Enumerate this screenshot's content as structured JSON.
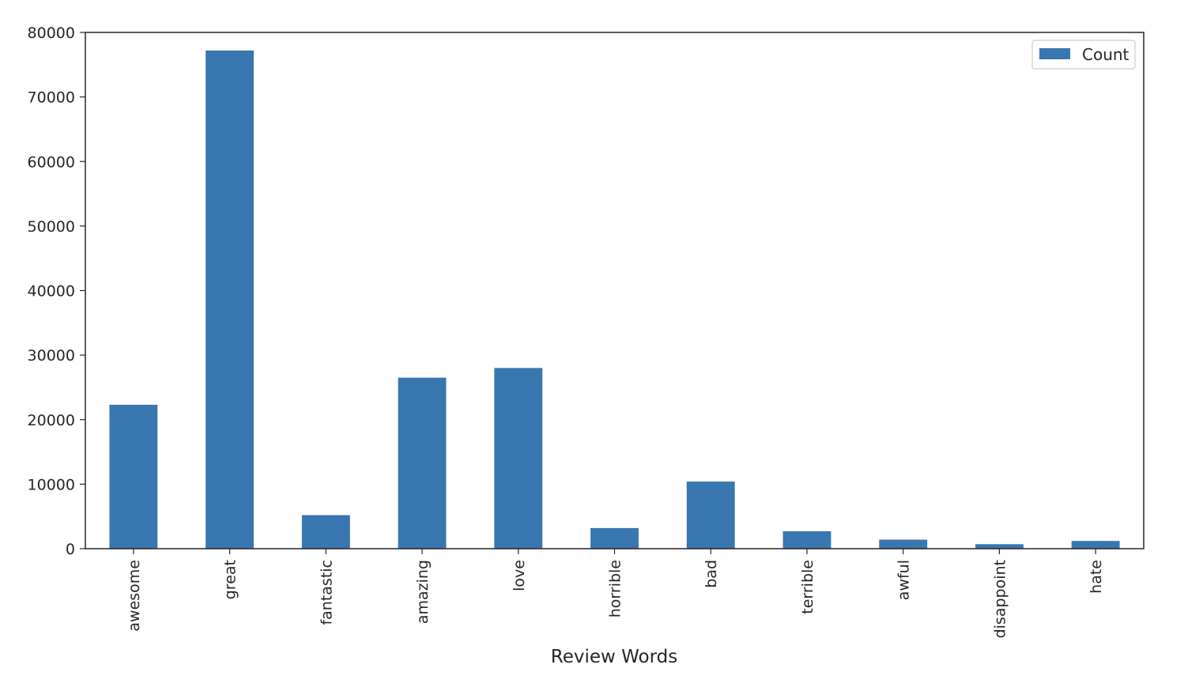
{
  "chart_data": {
    "type": "bar",
    "categories": [
      "awesome",
      "great",
      "fantastic",
      "amazing",
      "love",
      "horrible",
      "bad",
      "terrible",
      "awful",
      "disappoint",
      "hate"
    ],
    "series": [
      {
        "name": "Count",
        "values": [
          22300,
          77200,
          5200,
          26500,
          28000,
          3200,
          10400,
          2700,
          1400,
          700,
          1200
        ]
      }
    ],
    "title": "",
    "xlabel": "Review Words",
    "ylabel": "",
    "ylim": [
      0,
      80000
    ],
    "yticks": [
      0,
      10000,
      20000,
      30000,
      40000,
      50000,
      60000,
      70000,
      80000
    ],
    "grid": false,
    "legend": "top-right",
    "colors": {
      "bar": "#3a76af",
      "axes": "#262626",
      "legend_border": "#cccccc"
    }
  }
}
